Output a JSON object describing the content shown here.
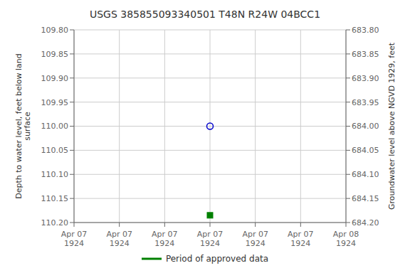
{
  "chart_data": {
    "type": "scatter",
    "title": "USGS 385855093340501 T48N R24W 04BCC1",
    "categories": [
      "Apr 07\n1924",
      "Apr 07\n1924",
      "Apr 07\n1924",
      "Apr 07\n1924",
      "Apr 07\n1924",
      "Apr 07\n1924",
      "Apr 08\n1924"
    ],
    "ylabel": "Depth to water level, feet below land\nsurface",
    "y2label": "Groundwater level above NGVD 1929, feet",
    "ylim": [
      110.2,
      109.8
    ],
    "yticks": [
      {
        "value": 109.8,
        "label": "109.80"
      },
      {
        "value": 109.85,
        "label": "109.85"
      },
      {
        "value": 109.9,
        "label": "109.90"
      },
      {
        "value": 109.95,
        "label": "109.95"
      },
      {
        "value": 110.0,
        "label": "110.00"
      },
      {
        "value": 110.05,
        "label": "110.05"
      },
      {
        "value": 110.1,
        "label": "110.10"
      },
      {
        "value": 110.15,
        "label": "110.15"
      },
      {
        "value": 110.2,
        "label": "110.20"
      }
    ],
    "y2lim": [
      684.2,
      683.8
    ],
    "y2ticks": [
      {
        "value": 684.2,
        "label": "684.20"
      },
      {
        "value": 684.15,
        "label": "684.15"
      },
      {
        "value": 684.1,
        "label": "684.10"
      },
      {
        "value": 684.05,
        "label": "684.05"
      },
      {
        "value": 684.0,
        "label": "684.00"
      },
      {
        "value": 683.95,
        "label": "683.95"
      },
      {
        "value": 683.9,
        "label": "683.90"
      },
      {
        "value": 683.85,
        "label": "683.85"
      },
      {
        "value": 683.8,
        "label": "683.80"
      }
    ],
    "grid": true,
    "legend": "bottom",
    "series": [
      {
        "color": "#0000cc",
        "marker": "open_circle",
        "values": [
          null,
          null,
          null,
          110.0,
          null,
          null,
          null
        ]
      },
      {
        "name": "Period of approved data",
        "color": "#008000",
        "marker": "square",
        "values": [
          null,
          null,
          null,
          110.185,
          null,
          null,
          null
        ]
      }
    ]
  }
}
